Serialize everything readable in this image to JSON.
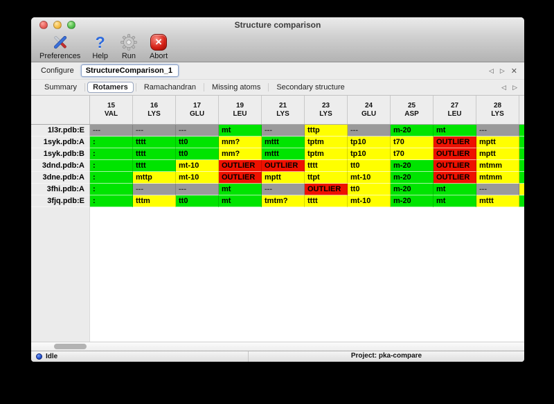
{
  "window": {
    "title": "Structure comparison"
  },
  "toolbar": {
    "items": [
      {
        "label": "Preferences",
        "icon": "crossed-tools-icon"
      },
      {
        "label": "Help",
        "icon": "question-mark-icon",
        "glyph": "?"
      },
      {
        "label": "Run",
        "icon": "gear-icon"
      },
      {
        "label": "Abort",
        "icon": "abort-cross-icon",
        "glyph": "✕"
      }
    ]
  },
  "configure": {
    "label": "Configure",
    "value": "StructureComparison_1"
  },
  "icons": {
    "back": "◁",
    "forward": "▷",
    "close": "✕"
  },
  "tabs": [
    {
      "label": "Summary",
      "selected": false
    },
    {
      "label": "Rotamers",
      "selected": true
    },
    {
      "label": "Ramachandran",
      "selected": false
    },
    {
      "label": "Missing atoms",
      "selected": false
    },
    {
      "label": "Secondary structure",
      "selected": false
    }
  ],
  "colors": {
    "green": "#00e400",
    "yellow": "#ffff00",
    "red": "#ee1100",
    "gray": "#9a9a9a"
  },
  "table": {
    "columns": [
      {
        "num": "15",
        "res": "VAL"
      },
      {
        "num": "16",
        "res": "LYS"
      },
      {
        "num": "17",
        "res": "GLU"
      },
      {
        "num": "19",
        "res": "LEU"
      },
      {
        "num": "21",
        "res": "LYS"
      },
      {
        "num": "23",
        "res": "LYS"
      },
      {
        "num": "24",
        "res": "GLU"
      },
      {
        "num": "25",
        "res": "ASP"
      },
      {
        "num": "27",
        "res": "LEU"
      },
      {
        "num": "28",
        "res": "LYS"
      }
    ],
    "rows": [
      {
        "label": "1l3r.pdb:E",
        "sliver": "green",
        "cells": [
          {
            "t": "---",
            "c": "gray"
          },
          {
            "t": "---",
            "c": "gray"
          },
          {
            "t": "---",
            "c": "gray"
          },
          {
            "t": "mt",
            "c": "green"
          },
          {
            "t": "---",
            "c": "gray"
          },
          {
            "t": "tttp",
            "c": "yellow"
          },
          {
            "t": "---",
            "c": "gray"
          },
          {
            "t": "m-20",
            "c": "green"
          },
          {
            "t": "mt",
            "c": "green"
          },
          {
            "t": "---",
            "c": "gray"
          }
        ]
      },
      {
        "label": "1syk.pdb:A",
        "sliver": "green",
        "cells": [
          {
            "t": ":",
            "c": "green"
          },
          {
            "t": "tttt",
            "c": "green"
          },
          {
            "t": "tt0",
            "c": "green"
          },
          {
            "t": "mm?",
            "c": "yellow"
          },
          {
            "t": "mttt",
            "c": "green"
          },
          {
            "t": "tptm",
            "c": "yellow"
          },
          {
            "t": "tp10",
            "c": "yellow"
          },
          {
            "t": "t70",
            "c": "yellow"
          },
          {
            "t": "OUTLIER",
            "c": "red"
          },
          {
            "t": "mptt",
            "c": "yellow"
          }
        ]
      },
      {
        "label": "1syk.pdb:B",
        "sliver": "green",
        "cells": [
          {
            "t": ":",
            "c": "green"
          },
          {
            "t": "tttt",
            "c": "green"
          },
          {
            "t": "tt0",
            "c": "green"
          },
          {
            "t": "mm?",
            "c": "yellow"
          },
          {
            "t": "mttt",
            "c": "green"
          },
          {
            "t": "tptm",
            "c": "yellow"
          },
          {
            "t": "tp10",
            "c": "yellow"
          },
          {
            "t": "t70",
            "c": "yellow"
          },
          {
            "t": "OUTLIER",
            "c": "red"
          },
          {
            "t": "mptt",
            "c": "yellow"
          }
        ]
      },
      {
        "label": "3dnd.pdb:A",
        "sliver": "green",
        "cells": [
          {
            "t": ":",
            "c": "green"
          },
          {
            "t": "tttt",
            "c": "green"
          },
          {
            "t": "mt-10",
            "c": "yellow"
          },
          {
            "t": "OUTLIER",
            "c": "red"
          },
          {
            "t": "OUTLIER",
            "c": "red"
          },
          {
            "t": "tttt",
            "c": "yellow"
          },
          {
            "t": "tt0",
            "c": "yellow"
          },
          {
            "t": "m-20",
            "c": "green"
          },
          {
            "t": "OUTLIER",
            "c": "red"
          },
          {
            "t": "mtmm",
            "c": "yellow"
          }
        ]
      },
      {
        "label": "3dne.pdb:A",
        "sliver": "green",
        "cells": [
          {
            "t": ":",
            "c": "green"
          },
          {
            "t": "mttp",
            "c": "yellow"
          },
          {
            "t": "mt-10",
            "c": "yellow"
          },
          {
            "t": "OUTLIER",
            "c": "red"
          },
          {
            "t": "mptt",
            "c": "yellow"
          },
          {
            "t": "ttpt",
            "c": "yellow"
          },
          {
            "t": "mt-10",
            "c": "yellow"
          },
          {
            "t": "m-20",
            "c": "green"
          },
          {
            "t": "OUTLIER",
            "c": "red"
          },
          {
            "t": "mtmm",
            "c": "yellow"
          }
        ]
      },
      {
        "label": "3fhi.pdb:A",
        "sliver": "yellow",
        "cells": [
          {
            "t": ":",
            "c": "green"
          },
          {
            "t": "---",
            "c": "gray"
          },
          {
            "t": "---",
            "c": "gray"
          },
          {
            "t": "mt",
            "c": "green"
          },
          {
            "t": "---",
            "c": "gray"
          },
          {
            "t": "OUTLIER",
            "c": "red"
          },
          {
            "t": "tt0",
            "c": "yellow"
          },
          {
            "t": "m-20",
            "c": "green"
          },
          {
            "t": "mt",
            "c": "green"
          },
          {
            "t": "---",
            "c": "gray"
          }
        ]
      },
      {
        "label": "3fjq.pdb:E",
        "sliver": "green",
        "cells": [
          {
            "t": ":",
            "c": "green"
          },
          {
            "t": "tttm",
            "c": "yellow"
          },
          {
            "t": "tt0",
            "c": "green"
          },
          {
            "t": "mt",
            "c": "green"
          },
          {
            "t": "tmtm?",
            "c": "yellow"
          },
          {
            "t": "tttt",
            "c": "yellow"
          },
          {
            "t": "mt-10",
            "c": "yellow"
          },
          {
            "t": "m-20",
            "c": "green"
          },
          {
            "t": "mt",
            "c": "green"
          },
          {
            "t": "mttt",
            "c": "yellow"
          }
        ]
      }
    ]
  },
  "statusbar": {
    "status": "Idle",
    "project": "Project: pka-compare"
  }
}
